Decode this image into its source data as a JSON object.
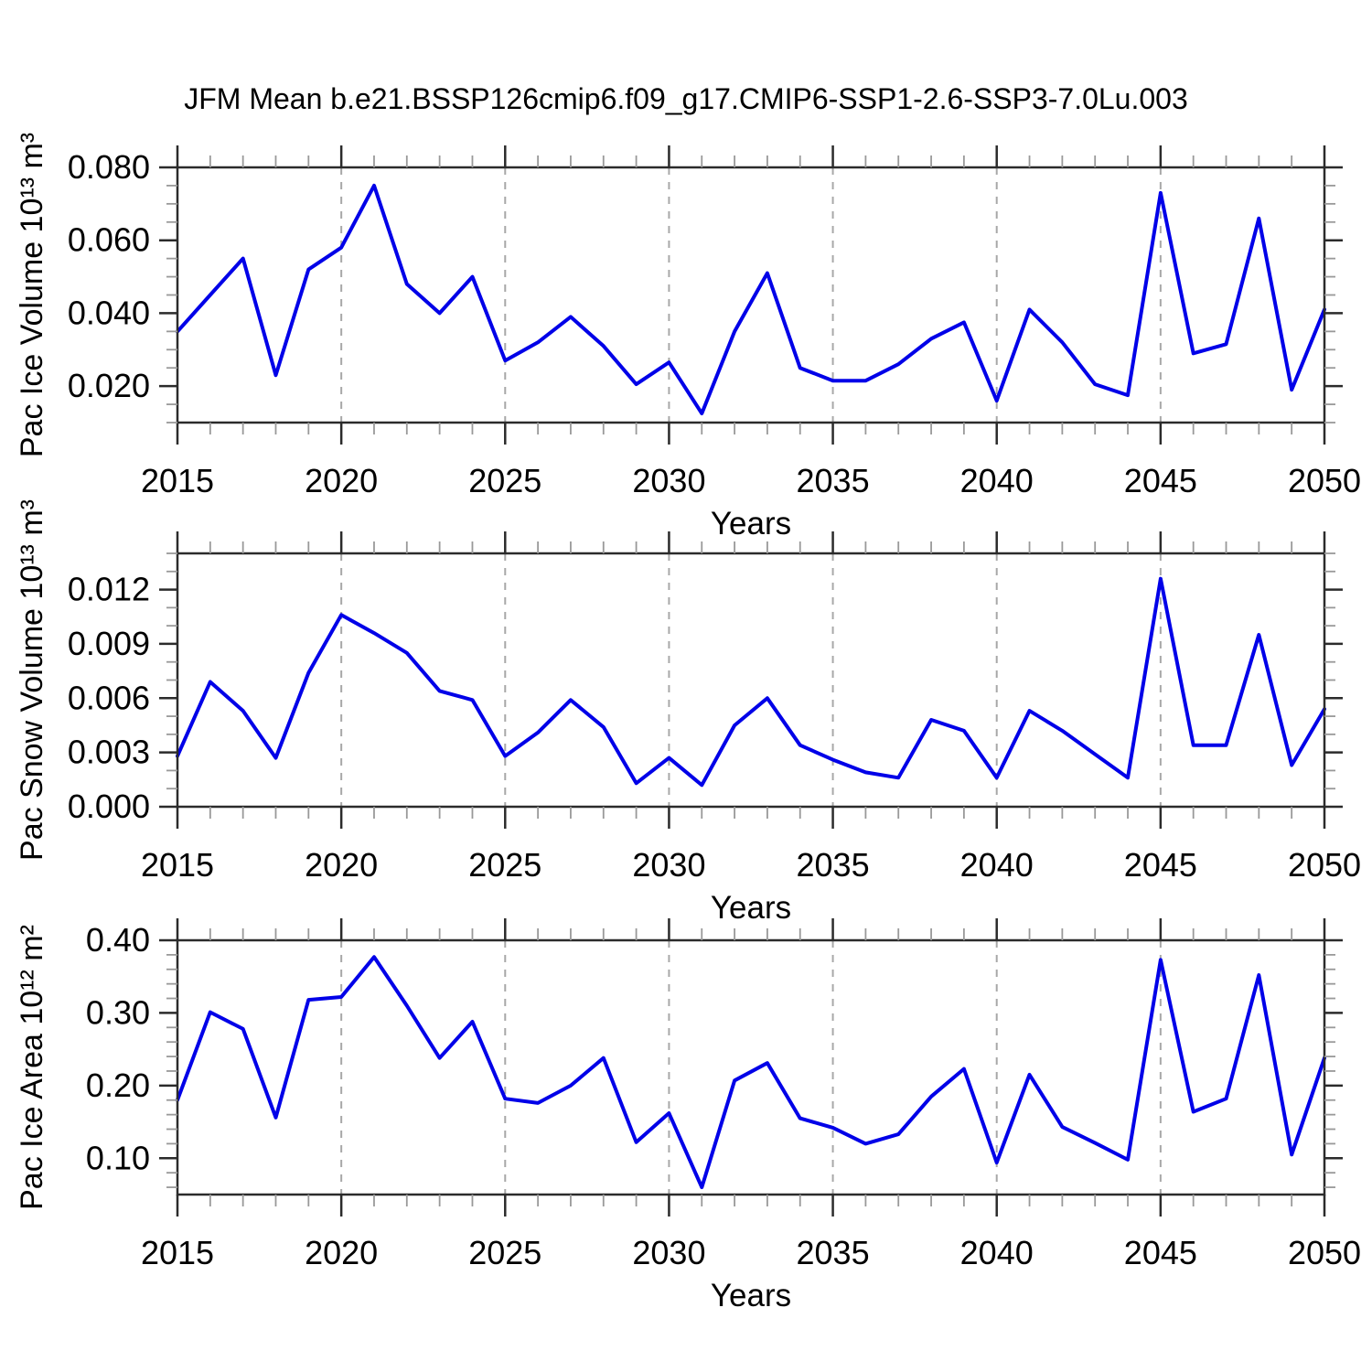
{
  "title": "JFM Mean b.e21.BSSP126cmip6.f09_g17.CMIP6-SSP1-2.6-SSP3-7.0Lu.003",
  "x_axis": {
    "label": "Years",
    "start": 2015,
    "end": 2050,
    "minor_tick_step": 1,
    "major_tick_years": [
      2015,
      2020,
      2025,
      2030,
      2035,
      2040,
      2045,
      2050
    ],
    "gridline_years": [
      2020,
      2025,
      2030,
      2035,
      2040,
      2045
    ]
  },
  "colors": {
    "series_line": "#0000e8",
    "gridline": "#a8a8a8",
    "frame": "#2b2b2b",
    "major_tick": "#2b2b2b",
    "minor_tick": "#999999",
    "text": "#000000",
    "background": "#ffffff"
  },
  "years": [
    2015,
    2016,
    2017,
    2018,
    2019,
    2020,
    2021,
    2022,
    2023,
    2024,
    2025,
    2026,
    2027,
    2028,
    2029,
    2030,
    2031,
    2032,
    2033,
    2034,
    2035,
    2036,
    2037,
    2038,
    2039,
    2040,
    2041,
    2042,
    2043,
    2044,
    2045,
    2046,
    2047,
    2048,
    2049,
    2050
  ],
  "chart_data": [
    {
      "type": "line",
      "name": "pac-ice-volume",
      "title": "",
      "xlabel": "Years",
      "ylabel": "Pac Ice Volume 10¹³ m³",
      "ylim": [
        0.01,
        0.08
      ],
      "grid": "vertical-dashed",
      "legend": "none",
      "ytick_major": [
        {
          "v": 0.08,
          "label": "0.080"
        },
        {
          "v": 0.06,
          "label": "0.060"
        },
        {
          "v": 0.04,
          "label": "0.040"
        },
        {
          "v": 0.02,
          "label": "0.020"
        }
      ],
      "ytick_minor_step": 0.005,
      "values": [
        0.035,
        0.045,
        0.055,
        0.023,
        0.052,
        0.058,
        0.075,
        0.048,
        0.04,
        0.05,
        0.027,
        0.032,
        0.039,
        0.031,
        0.0205,
        0.0265,
        0.0125,
        0.035,
        0.051,
        0.025,
        0.0215,
        0.0215,
        0.026,
        0.033,
        0.0375,
        0.016,
        0.041,
        0.032,
        0.0205,
        0.0175,
        0.073,
        0.029,
        0.0315,
        0.066,
        0.019,
        0.041
      ]
    },
    {
      "type": "line",
      "name": "pac-snow-volume",
      "title": "",
      "xlabel": "Years",
      "ylabel": "Pac Snow Volume 10¹³ m³",
      "ylim": [
        0.0,
        0.014
      ],
      "grid": "vertical-dashed",
      "legend": "none",
      "ytick_major": [
        {
          "v": 0.012,
          "label": "0.012"
        },
        {
          "v": 0.009,
          "label": "0.009"
        },
        {
          "v": 0.006,
          "label": "0.006"
        },
        {
          "v": 0.003,
          "label": "0.003"
        },
        {
          "v": 0.0,
          "label": "0.000"
        }
      ],
      "ytick_minor_step": 0.001,
      "values": [
        0.0028,
        0.0069,
        0.0053,
        0.0027,
        0.0074,
        0.0106,
        0.0096,
        0.0085,
        0.0064,
        0.0059,
        0.0028,
        0.0041,
        0.0059,
        0.0044,
        0.0013,
        0.0027,
        0.0012,
        0.0045,
        0.006,
        0.0034,
        0.0026,
        0.0019,
        0.0016,
        0.0048,
        0.0042,
        0.0016,
        0.0053,
        0.0042,
        0.0029,
        0.0016,
        0.0126,
        0.0034,
        0.0034,
        0.0095,
        0.0023,
        0.0054
      ]
    },
    {
      "type": "line",
      "name": "pac-ice-area",
      "title": "",
      "xlabel": "Years",
      "ylabel": "Pac Ice Area 10¹² m²",
      "ylim": [
        0.05,
        0.4
      ],
      "grid": "vertical-dashed",
      "legend": "none",
      "ytick_major": [
        {
          "v": 0.4,
          "label": "0.40"
        },
        {
          "v": 0.3,
          "label": "0.30"
        },
        {
          "v": 0.2,
          "label": "0.20"
        },
        {
          "v": 0.1,
          "label": "0.10"
        }
      ],
      "ytick_minor_step": 0.02,
      "values": [
        0.18,
        0.301,
        0.278,
        0.156,
        0.318,
        0.322,
        0.377,
        0.31,
        0.238,
        0.288,
        0.182,
        0.176,
        0.2,
        0.238,
        0.122,
        0.162,
        0.06,
        0.207,
        0.231,
        0.155,
        0.142,
        0.12,
        0.133,
        0.185,
        0.223,
        0.094,
        0.215,
        0.143,
        0.121,
        0.098,
        0.373,
        0.164,
        0.182,
        0.352,
        0.105,
        0.238
      ]
    }
  ]
}
